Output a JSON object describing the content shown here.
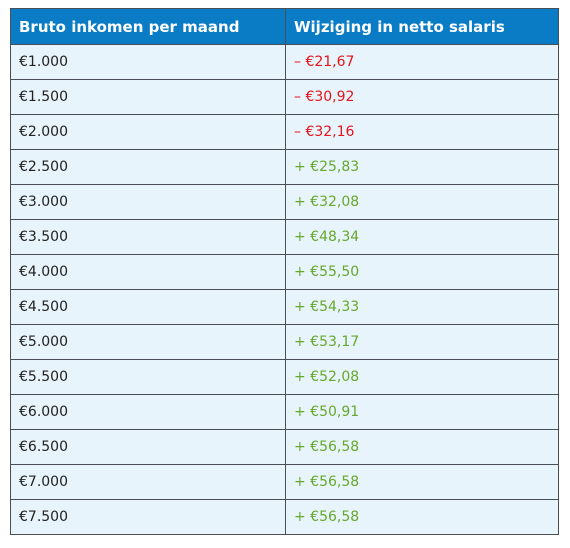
{
  "table": {
    "header": [
      "Bruto inkomen per maand",
      "Wijziging in netto salaris"
    ],
    "rows": [
      [
        "€1.000",
        "– €21,67"
      ],
      [
        "€1.500",
        "– €30,92"
      ],
      [
        "€2.000",
        "– €32,16"
      ],
      [
        "€2.500",
        "+ €25,83"
      ],
      [
        "€3.000",
        "+ €32,08"
      ],
      [
        "€3.500",
        "+ €48,34"
      ],
      [
        "€4.000",
        "+ €55,50"
      ],
      [
        "€4.500",
        "+ €54,33"
      ],
      [
        "€5.000",
        "+ €53,17"
      ],
      [
        "€5.500",
        "+ €52,08"
      ],
      [
        "€6.000",
        "+ €50,91"
      ],
      [
        "€6.500",
        "+ €56,58"
      ],
      [
        "€7.000",
        "+ €56,58"
      ],
      [
        "€7.500",
        "+ €56,58"
      ]
    ]
  }
}
